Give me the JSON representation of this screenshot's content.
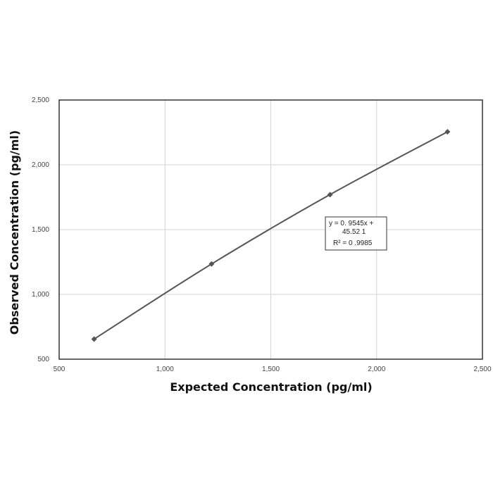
{
  "chart_data": {
    "type": "scatter",
    "title": "",
    "xlabel": "Expected Concentration (pg/ml)",
    "ylabel": "Observed Concentration (pg/ml)",
    "xlim": [
      500,
      2500
    ],
    "ylim": [
      500,
      2500
    ],
    "x_ticks": [
      500,
      1000,
      1500,
      2000,
      2500
    ],
    "y_ticks": [
      500,
      1000,
      1500,
      2000,
      2500
    ],
    "x_tick_labels": [
      "500",
      "1,000",
      "1,500",
      "2,000",
      "2,500"
    ],
    "y_tick_labels": [
      "500",
      "1,000",
      "1,500",
      "2,000",
      "2,500"
    ],
    "grid": true,
    "series": [
      {
        "x": [
          665,
          1220,
          1780,
          2335
        ],
        "y": [
          655,
          1235,
          1770,
          2255
        ]
      }
    ],
    "marker": "diamond",
    "line_color": "#555555",
    "annotation": {
      "lines": [
        "y =  0. 9545x +",
        "45.52  1",
        "R² = 0 .9985"
      ]
    }
  }
}
